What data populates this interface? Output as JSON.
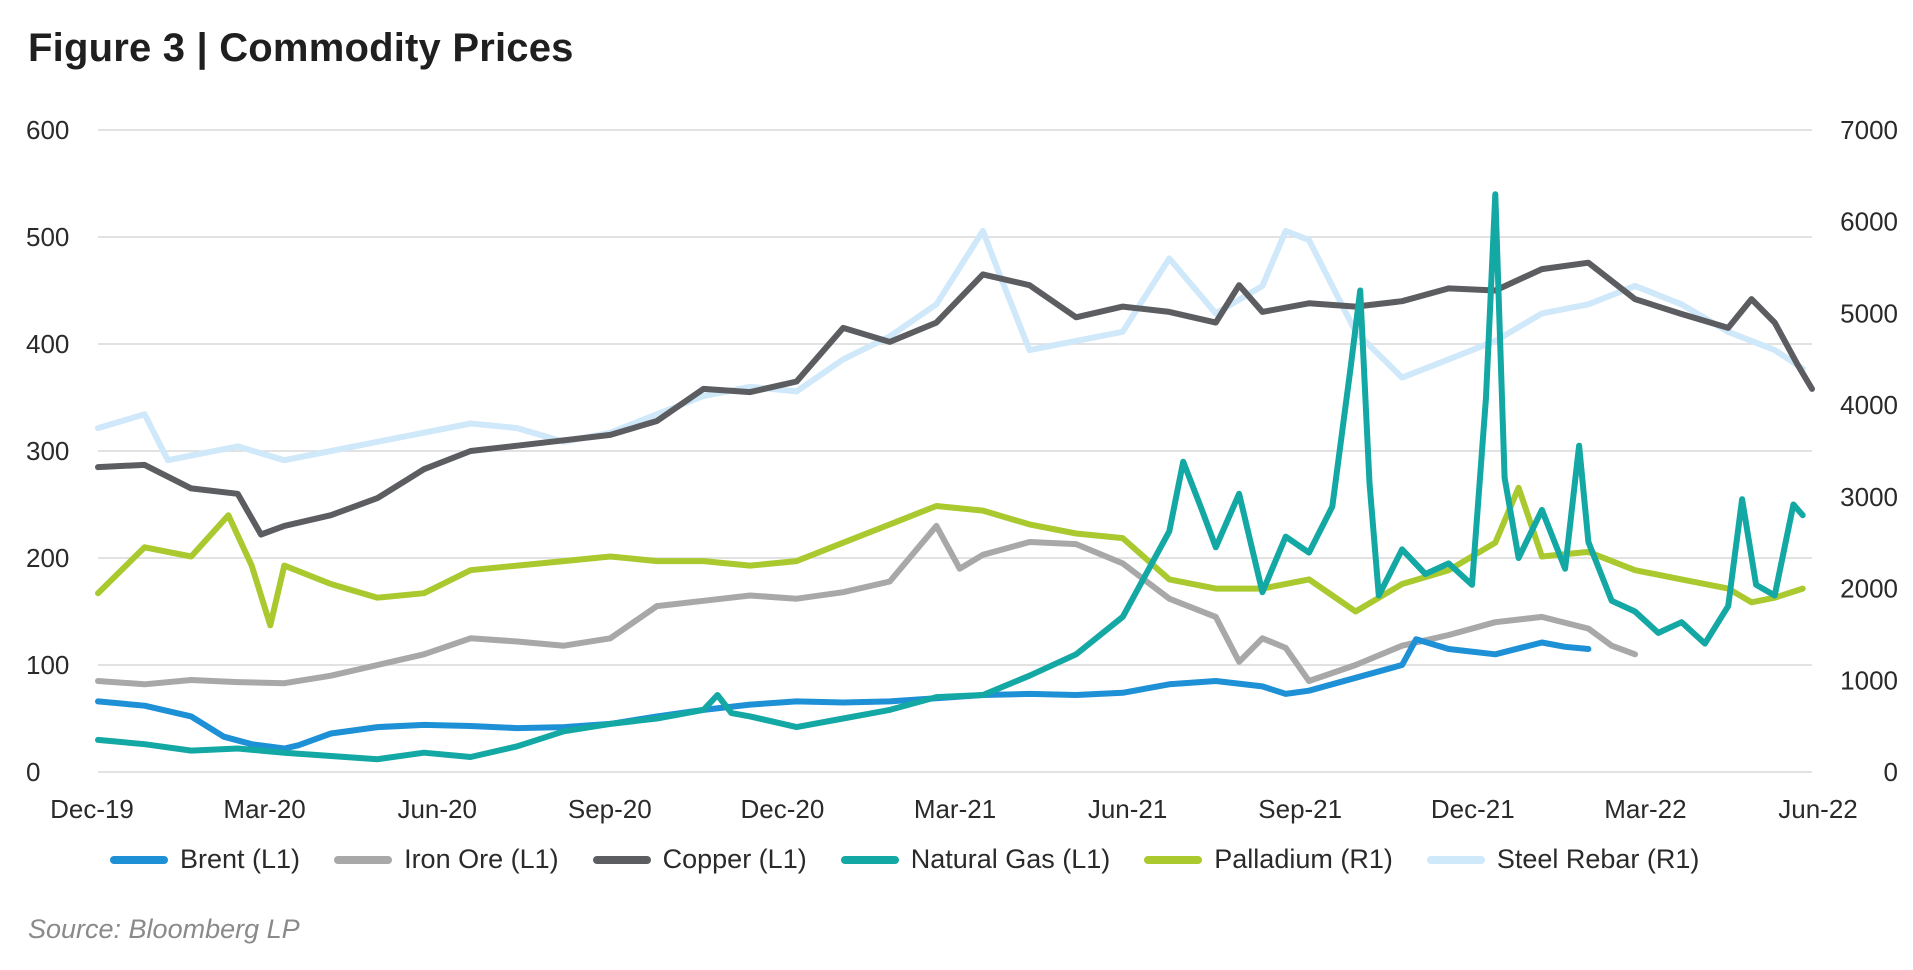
{
  "title": "Figure 3  |  Commodity Prices",
  "source": "Source: Bloomberg LP",
  "chart_data": {
    "type": "line",
    "title": "Figure 3 | Commodity Prices",
    "x_tick_labels": [
      "Dec-19",
      "Mar-20",
      "Jun-20",
      "Sep-20",
      "Dec-20",
      "Mar-21",
      "Jun-21",
      "Sep-21",
      "Dec-21",
      "Mar-22",
      "Jun-22"
    ],
    "x_range_months": [
      0,
      30
    ],
    "y_left": {
      "ticks": [
        0,
        100,
        200,
        300,
        400,
        500,
        600
      ],
      "range": [
        0,
        600
      ]
    },
    "y_right": {
      "ticks": [
        0,
        1000,
        2000,
        3000,
        4000,
        5000,
        6000,
        7000
      ],
      "range": [
        0,
        7000
      ]
    },
    "grid": true,
    "legend_position": "bottom",
    "series": [
      {
        "name": "Brent (L1)",
        "axis": "left",
        "color": "#1e90d6",
        "points": [
          [
            0,
            66
          ],
          [
            1,
            62
          ],
          [
            2,
            52
          ],
          [
            2.7,
            33
          ],
          [
            3.3,
            26
          ],
          [
            4,
            22
          ],
          [
            4.3,
            25
          ],
          [
            5,
            36
          ],
          [
            6,
            42
          ],
          [
            7,
            44
          ],
          [
            8,
            43
          ],
          [
            9,
            41
          ],
          [
            10,
            42
          ],
          [
            11,
            45
          ],
          [
            12,
            52
          ],
          [
            13,
            58
          ],
          [
            14,
            63
          ],
          [
            15,
            66
          ],
          [
            16,
            65
          ],
          [
            17,
            66
          ],
          [
            18,
            69
          ],
          [
            19,
            72
          ],
          [
            20,
            73
          ],
          [
            21,
            72
          ],
          [
            22,
            74
          ],
          [
            23,
            82
          ],
          [
            24,
            85
          ],
          [
            25,
            80
          ],
          [
            25.5,
            73
          ],
          [
            26,
            76
          ],
          [
            27,
            88
          ],
          [
            28,
            100
          ],
          [
            28.3,
            124
          ],
          [
            29,
            115
          ],
          [
            30,
            110
          ],
          [
            31,
            121
          ],
          [
            31.5,
            117
          ],
          [
            32,
            115
          ]
        ]
      },
      {
        "name": "Iron Ore (L1)",
        "axis": "left",
        "color": "#a8a8a8",
        "points": [
          [
            0,
            85
          ],
          [
            1,
            82
          ],
          [
            2,
            86
          ],
          [
            3,
            84
          ],
          [
            4,
            83
          ],
          [
            5,
            90
          ],
          [
            6,
            100
          ],
          [
            7,
            110
          ],
          [
            8,
            125
          ],
          [
            9,
            122
          ],
          [
            10,
            118
          ],
          [
            11,
            125
          ],
          [
            12,
            155
          ],
          [
            13,
            160
          ],
          [
            14,
            165
          ],
          [
            15,
            162
          ],
          [
            16,
            168
          ],
          [
            17,
            178
          ],
          [
            18,
            230
          ],
          [
            18.5,
            190
          ],
          [
            19,
            203
          ],
          [
            20,
            215
          ],
          [
            21,
            213
          ],
          [
            22,
            195
          ],
          [
            23,
            162
          ],
          [
            24,
            145
          ],
          [
            24.5,
            103
          ],
          [
            25,
            125
          ],
          [
            25.5,
            116
          ],
          [
            26,
            85
          ],
          [
            27,
            100
          ],
          [
            28,
            118
          ],
          [
            29,
            128
          ],
          [
            30,
            140
          ],
          [
            31,
            145
          ],
          [
            32,
            134
          ],
          [
            32.5,
            118
          ],
          [
            33,
            110
          ]
        ]
      },
      {
        "name": "Copper (L1)",
        "axis": "left",
        "color": "#5c5d60",
        "points": [
          [
            0,
            285
          ],
          [
            1,
            287
          ],
          [
            2,
            265
          ],
          [
            3,
            260
          ],
          [
            3.5,
            222
          ],
          [
            4,
            230
          ],
          [
            5,
            240
          ],
          [
            6,
            256
          ],
          [
            7,
            283
          ],
          [
            8,
            300
          ],
          [
            9,
            305
          ],
          [
            10,
            310
          ],
          [
            11,
            315
          ],
          [
            12,
            328
          ],
          [
            13,
            358
          ],
          [
            14,
            355
          ],
          [
            15,
            365
          ],
          [
            16,
            415
          ],
          [
            17,
            402
          ],
          [
            18,
            420
          ],
          [
            19,
            465
          ],
          [
            20,
            455
          ],
          [
            21,
            425
          ],
          [
            22,
            435
          ],
          [
            23,
            430
          ],
          [
            24,
            420
          ],
          [
            24.5,
            455
          ],
          [
            25,
            430
          ],
          [
            26,
            438
          ],
          [
            27,
            435
          ],
          [
            28,
            440
          ],
          [
            29,
            452
          ],
          [
            30,
            450
          ],
          [
            31,
            470
          ],
          [
            32,
            476
          ],
          [
            33,
            442
          ],
          [
            34,
            428
          ],
          [
            35,
            415
          ],
          [
            35.5,
            442
          ],
          [
            36,
            420
          ],
          [
            36.5,
            380
          ],
          [
            36.8,
            358
          ]
        ]
      },
      {
        "name": "Natural Gas (L1)",
        "axis": "left",
        "color": "#14a8a4",
        "points": [
          [
            0,
            30
          ],
          [
            1,
            26
          ],
          [
            2,
            20
          ],
          [
            3,
            22
          ],
          [
            4,
            18
          ],
          [
            5,
            15
          ],
          [
            6,
            12
          ],
          [
            7,
            18
          ],
          [
            8,
            14
          ],
          [
            9,
            24
          ],
          [
            10,
            38
          ],
          [
            11,
            45
          ],
          [
            12,
            50
          ],
          [
            13,
            58
          ],
          [
            13.3,
            72
          ],
          [
            13.6,
            55
          ],
          [
            14,
            52
          ],
          [
            15,
            42
          ],
          [
            16,
            50
          ],
          [
            17,
            58
          ],
          [
            18,
            70
          ],
          [
            19,
            72
          ],
          [
            20,
            90
          ],
          [
            21,
            110
          ],
          [
            22,
            145
          ],
          [
            23,
            225
          ],
          [
            23.3,
            290
          ],
          [
            23.7,
            245
          ],
          [
            24,
            210
          ],
          [
            24.5,
            260
          ],
          [
            25,
            168
          ],
          [
            25.5,
            220
          ],
          [
            26,
            205
          ],
          [
            26.5,
            248
          ],
          [
            26.9,
            380
          ],
          [
            27.1,
            450
          ],
          [
            27.3,
            270
          ],
          [
            27.5,
            165
          ],
          [
            28,
            208
          ],
          [
            28.5,
            185
          ],
          [
            29,
            195
          ],
          [
            29.5,
            175
          ],
          [
            29.8,
            350
          ],
          [
            30,
            540
          ],
          [
            30.2,
            275
          ],
          [
            30.5,
            200
          ],
          [
            31,
            245
          ],
          [
            31.5,
            190
          ],
          [
            31.8,
            305
          ],
          [
            32,
            215
          ],
          [
            32.5,
            160
          ],
          [
            33,
            150
          ],
          [
            33.5,
            130
          ],
          [
            34,
            140
          ],
          [
            34.5,
            120
          ],
          [
            35,
            155
          ],
          [
            35.3,
            255
          ],
          [
            35.6,
            175
          ],
          [
            36,
            165
          ],
          [
            36.4,
            250
          ],
          [
            36.6,
            240
          ]
        ]
      },
      {
        "name": "Palladium (R1)",
        "axis": "right",
        "color": "#a9c92f",
        "points": [
          [
            0,
            1950
          ],
          [
            1,
            2450
          ],
          [
            2,
            2350
          ],
          [
            2.8,
            2800
          ],
          [
            3.3,
            2250
          ],
          [
            3.7,
            1600
          ],
          [
            4,
            2250
          ],
          [
            5,
            2050
          ],
          [
            6,
            1900
          ],
          [
            7,
            1950
          ],
          [
            8,
            2200
          ],
          [
            9,
            2250
          ],
          [
            10,
            2300
          ],
          [
            11,
            2350
          ],
          [
            12,
            2300
          ],
          [
            13,
            2300
          ],
          [
            14,
            2250
          ],
          [
            15,
            2300
          ],
          [
            16,
            2500
          ],
          [
            17,
            2700
          ],
          [
            18,
            2900
          ],
          [
            19,
            2850
          ],
          [
            20,
            2700
          ],
          [
            21,
            2600
          ],
          [
            22,
            2550
          ],
          [
            23,
            2100
          ],
          [
            24,
            2000
          ],
          [
            25,
            2000
          ],
          [
            26,
            2100
          ],
          [
            27,
            1750
          ],
          [
            28,
            2050
          ],
          [
            29,
            2200
          ],
          [
            30,
            2500
          ],
          [
            30.5,
            3100
          ],
          [
            31,
            2350
          ],
          [
            32,
            2400
          ],
          [
            33,
            2200
          ],
          [
            34,
            2100
          ],
          [
            35,
            2000
          ],
          [
            35.5,
            1850
          ],
          [
            36,
            1900
          ],
          [
            36.6,
            2000
          ]
        ]
      },
      {
        "name": "Steel Rebar (R1)",
        "axis": "right",
        "color": "#cfe8fa",
        "points": [
          [
            0,
            3750
          ],
          [
            1,
            3900
          ],
          [
            1.5,
            3400
          ],
          [
            2,
            3450
          ],
          [
            3,
            3550
          ],
          [
            4,
            3400
          ],
          [
            5,
            3500
          ],
          [
            6,
            3600
          ],
          [
            7,
            3700
          ],
          [
            8,
            3800
          ],
          [
            9,
            3750
          ],
          [
            10,
            3600
          ],
          [
            11,
            3700
          ],
          [
            12,
            3900
          ],
          [
            13,
            4100
          ],
          [
            14,
            4200
          ],
          [
            15,
            4150
          ],
          [
            16,
            4500
          ],
          [
            17,
            4750
          ],
          [
            18,
            5100
          ],
          [
            19,
            5900
          ],
          [
            19.3,
            5500
          ],
          [
            20,
            4600
          ],
          [
            21,
            4700
          ],
          [
            22,
            4800
          ],
          [
            23,
            5600
          ],
          [
            24,
            5000
          ],
          [
            25,
            5300
          ],
          [
            25.5,
            5900
          ],
          [
            26,
            5800
          ],
          [
            27,
            4800
          ],
          [
            28,
            4300
          ],
          [
            29,
            4500
          ],
          [
            30,
            4700
          ],
          [
            31,
            5000
          ],
          [
            32,
            5100
          ],
          [
            33,
            5300
          ],
          [
            34,
            5100
          ],
          [
            35,
            4800
          ],
          [
            36,
            4600
          ],
          [
            36.6,
            4400
          ]
        ]
      }
    ]
  }
}
